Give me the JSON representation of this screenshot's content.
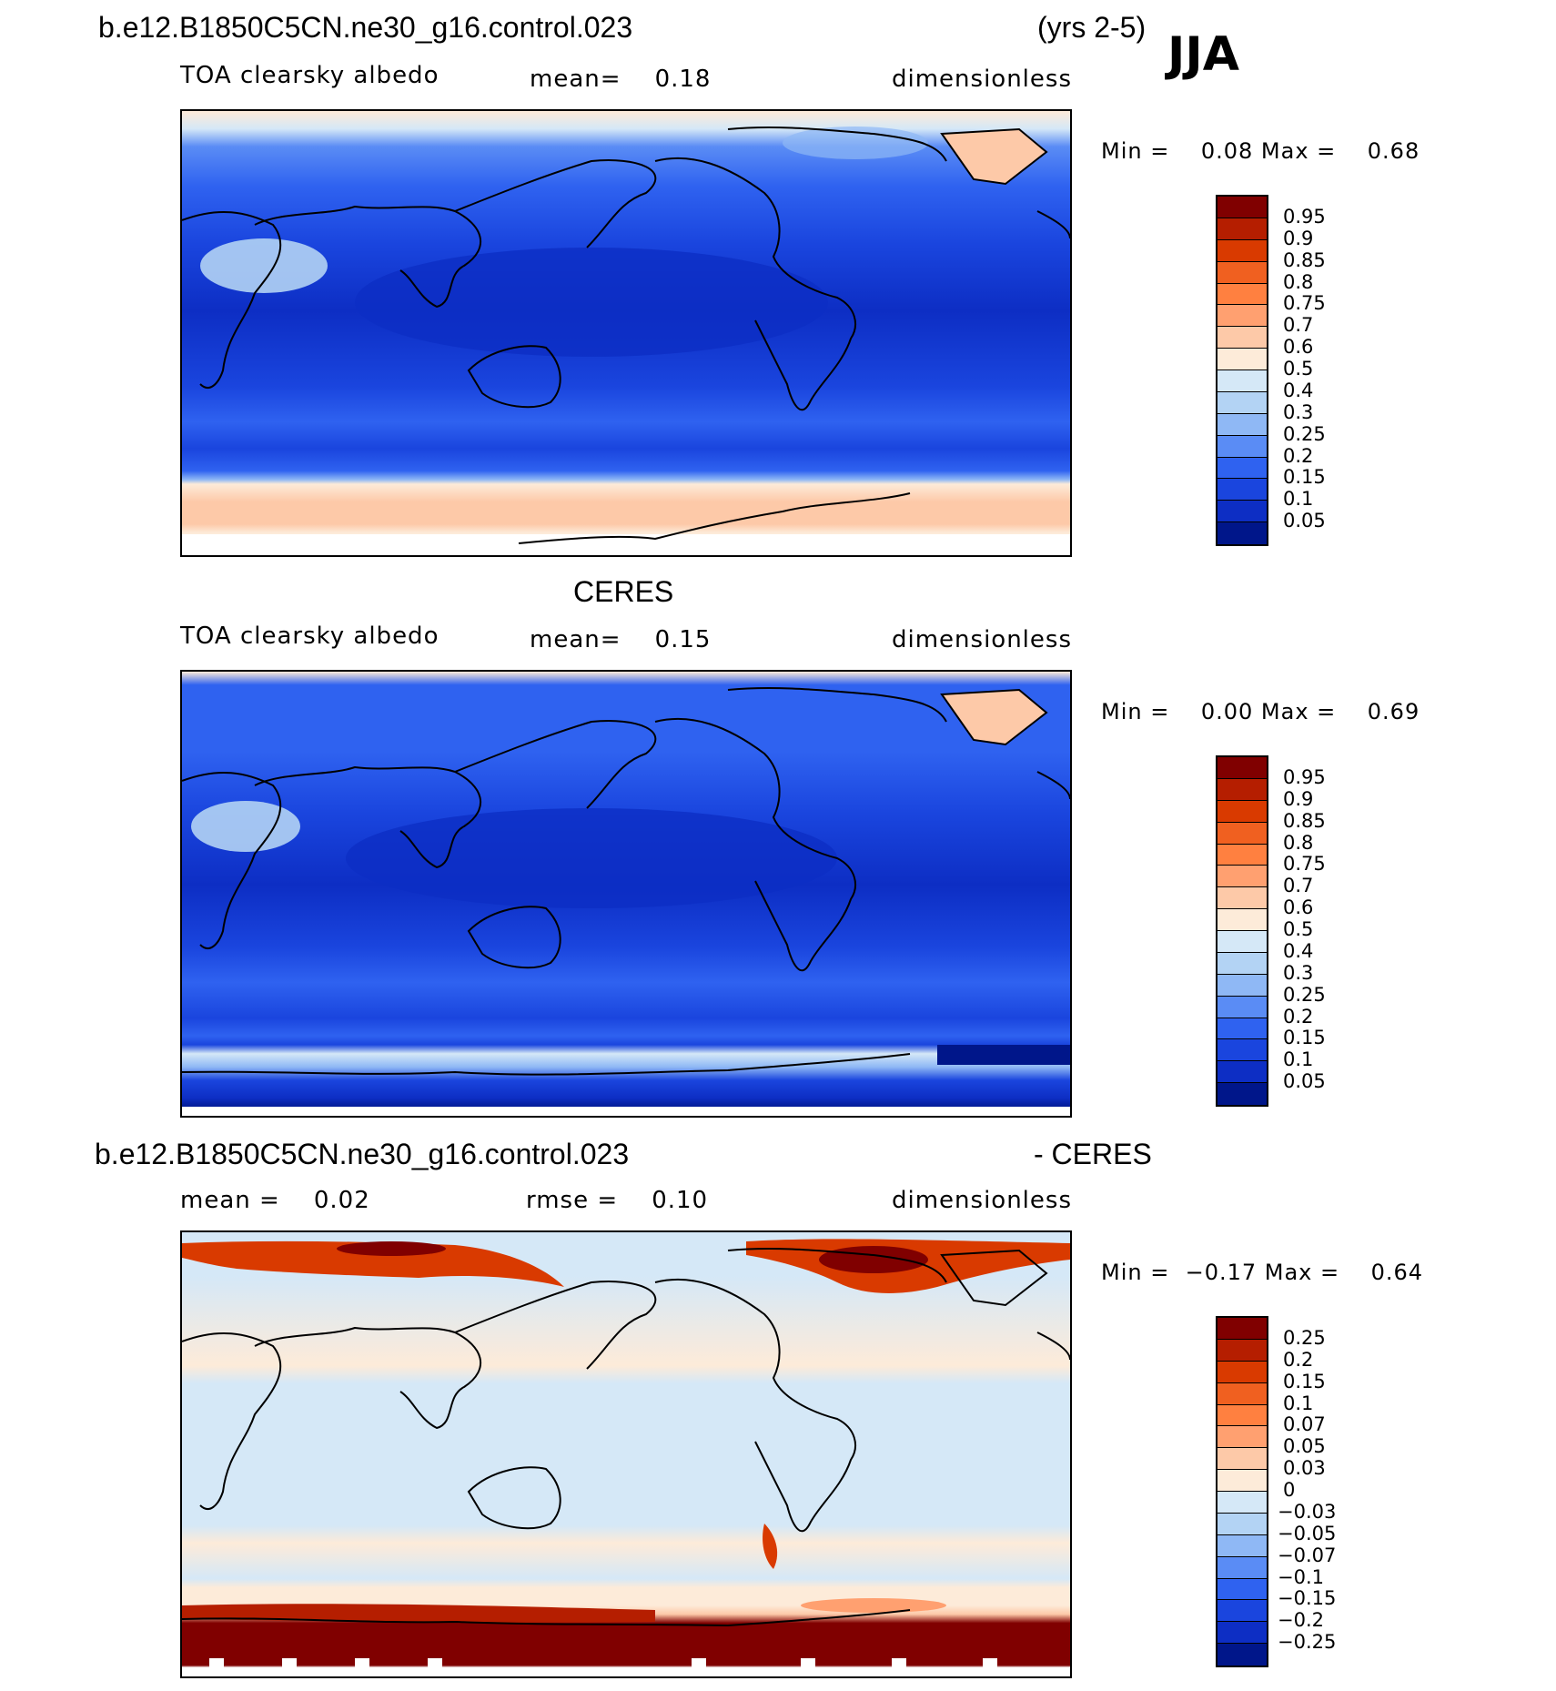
{
  "header": {
    "case_title": "b.e12.B1850C5CN.ne30_g16.control.023",
    "years": "(yrs 2-5)",
    "season": "JJA"
  },
  "panels": [
    {
      "title": "",
      "variable": "TOA clearsky albedo",
      "stat_text": "mean=    0.18",
      "middle_text": "",
      "units": "dimensionless",
      "min_max": "Min =    0.08 Max =    0.68",
      "colorbar": {
        "labels": [
          "0.95",
          "0.9",
          "0.85",
          "0.8",
          "0.75",
          "0.7",
          "0.6",
          "0.5",
          "0.4",
          "0.3",
          "0.25",
          "0.2",
          "0.15",
          "0.1",
          "0.05"
        ],
        "colors": [
          "#800000",
          "#B51E00",
          "#D93A00",
          "#F06020",
          "#FF8040",
          "#FFA070",
          "#FDC9A8",
          "#FDEBD9",
          "#D5E8F7",
          "#B3D3F4",
          "#8FB8F5",
          "#5A8CF5",
          "#2F62F0",
          "#1A45DE",
          "#0D2EC4",
          "#00168A"
        ]
      }
    },
    {
      "title": "CERES",
      "variable": "TOA clearsky albedo",
      "stat_text": "mean=    0.15",
      "middle_text": "",
      "units": "dimensionless",
      "min_max": "Min =    0.00 Max =    0.69",
      "colorbar": {
        "labels": [
          "0.95",
          "0.9",
          "0.85",
          "0.8",
          "0.75",
          "0.7",
          "0.6",
          "0.5",
          "0.4",
          "0.3",
          "0.25",
          "0.2",
          "0.15",
          "0.1",
          "0.05"
        ],
        "colors": [
          "#800000",
          "#B51E00",
          "#D93A00",
          "#F06020",
          "#FF8040",
          "#FFA070",
          "#FDC9A8",
          "#FDEBD9",
          "#D5E8F7",
          "#B3D3F4",
          "#8FB8F5",
          "#5A8CF5",
          "#2F62F0",
          "#1A45DE",
          "#0D2EC4",
          "#00168A"
        ]
      }
    },
    {
      "title": "b.e12.B1850C5CN.ne30_g16.control.023",
      "title_right": "- CERES",
      "variable": "",
      "stat_text": "mean =    0.02",
      "middle_text": "rmse =    0.10",
      "units": "dimensionless",
      "min_max": "Min =  −0.17 Max =    0.64",
      "colorbar": {
        "labels": [
          "0.25",
          "0.2",
          "0.15",
          "0.1",
          "0.07",
          "0.05",
          "0.03",
          "0",
          "−0.03",
          "−0.05",
          "−0.07",
          "−0.1",
          "−0.15",
          "−0.2",
          "−0.25"
        ],
        "colors": [
          "#800000",
          "#B51E00",
          "#D93A00",
          "#F06020",
          "#FF8040",
          "#FFA070",
          "#FDC9A8",
          "#FDEBD9",
          "#D5E8F7",
          "#B3D3F4",
          "#8FB8F5",
          "#5A8CF5",
          "#2F62F0",
          "#1A45DE",
          "#0D2EC4",
          "#00168A"
        ]
      }
    }
  ]
}
